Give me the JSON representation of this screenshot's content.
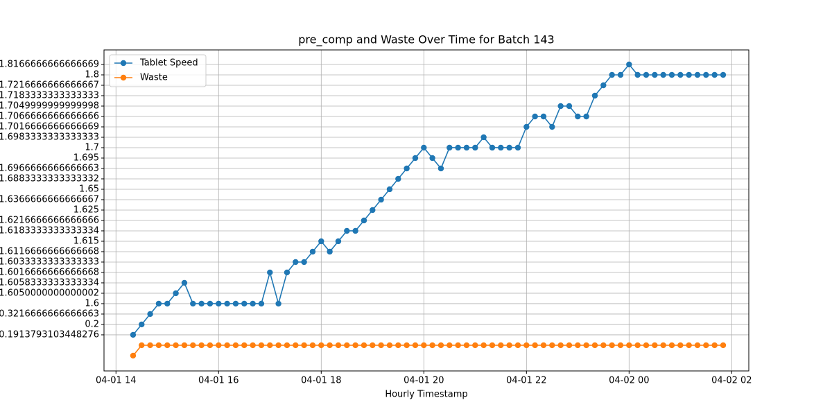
{
  "chart_data": {
    "type": "line",
    "title": "pre_comp and Waste Over Time for Batch 143",
    "xlabel": "Hourly Timestamp",
    "x": [
      "04-01 14:20",
      "04-01 14:30",
      "04-01 14:40",
      "04-01 14:50",
      "04-01 15:00",
      "04-01 15:10",
      "04-01 15:20",
      "04-01 15:30",
      "04-01 15:40",
      "04-01 15:50",
      "04-01 16:00",
      "04-01 16:10",
      "04-01 16:20",
      "04-01 16:30",
      "04-01 16:40",
      "04-01 16:50",
      "04-01 17:00",
      "04-01 17:10",
      "04-01 17:20",
      "04-01 17:30",
      "04-01 17:40",
      "04-01 17:50",
      "04-01 18:00",
      "04-01 18:10",
      "04-01 18:20",
      "04-01 18:30",
      "04-01 18:40",
      "04-01 18:50",
      "04-01 19:00",
      "04-01 19:10",
      "04-01 19:20",
      "04-01 19:30",
      "04-01 19:40",
      "04-01 19:50",
      "04-01 20:00",
      "04-01 20:10",
      "04-01 20:20",
      "04-01 20:30",
      "04-01 20:40",
      "04-01 20:50",
      "04-01 21:00",
      "04-01 21:10",
      "04-01 21:20",
      "04-01 21:30",
      "04-01 21:40",
      "04-01 21:50",
      "04-01 22:00",
      "04-01 22:10",
      "04-01 22:20",
      "04-01 22:30",
      "04-01 22:40",
      "04-01 22:50",
      "04-01 23:00",
      "04-01 23:10",
      "04-01 23:20",
      "04-01 23:30",
      "04-01 23:40",
      "04-01 23:50",
      "04-02 00:00",
      "04-02 00:10",
      "04-02 00:20",
      "04-02 00:30",
      "04-02 00:40",
      "04-02 00:50",
      "04-02 01:00",
      "04-02 01:10",
      "04-02 01:20",
      "04-02 01:30",
      "04-02 01:40",
      "04-02 01:50"
    ],
    "series": [
      {
        "name": "Tablet Speed",
        "color": "#1f77b4",
        "values": [
          0,
          1,
          2,
          3,
          3,
          4,
          5,
          3,
          3,
          3,
          3,
          3,
          3,
          3,
          3,
          3,
          6,
          3,
          6,
          7,
          7,
          8,
          9,
          8,
          9,
          10,
          10,
          11,
          12,
          13,
          14,
          15,
          16,
          17,
          18,
          17,
          16,
          18,
          18,
          18,
          18,
          19,
          18,
          18,
          18,
          18,
          20,
          21,
          21,
          20,
          22,
          22,
          21,
          21,
          23,
          24,
          25,
          25,
          26,
          25,
          25,
          25,
          25,
          25,
          25,
          25,
          25,
          25,
          25,
          25
        ]
      },
      {
        "name": "Waste",
        "color": "#ff7f0e",
        "values": [
          -2,
          -1,
          -1,
          -1,
          -1,
          -1,
          -1,
          -1,
          -1,
          -1,
          -1,
          -1,
          -1,
          -1,
          -1,
          -1,
          -1,
          -1,
          -1,
          -1,
          -1,
          -1,
          -1,
          -1,
          -1,
          -1,
          -1,
          -1,
          -1,
          -1,
          -1,
          -1,
          -1,
          -1,
          -1,
          -1,
          -1,
          -1,
          -1,
          -1,
          -1,
          -1,
          -1,
          -1,
          -1,
          -1,
          -1,
          -1,
          -1,
          -1,
          -1,
          -1,
          -1,
          -1,
          -1,
          -1,
          -1,
          -1,
          -1,
          -1,
          -1,
          -1,
          -1,
          -1,
          -1,
          -1,
          -1,
          -1,
          -1,
          -1
        ]
      }
    ],
    "xlim": [
      "04-01 13:46",
      "04-02 02:20"
    ],
    "xticks": [
      "04-01 14",
      "04-01 16",
      "04-01 18",
      "04-01 20",
      "04-01 22",
      "04-02 00",
      "04-02 02"
    ],
    "ylim": [
      -3.47,
      27.4
    ],
    "yticks": [
      {
        "value": 0,
        "label": "0.1913793103448276"
      },
      {
        "value": 1,
        "label": "0.2"
      },
      {
        "value": 2,
        "label": "0.3216666666666663"
      },
      {
        "value": 3,
        "label": "1.6"
      },
      {
        "value": 4,
        "label": "1.6050000000000002"
      },
      {
        "value": 5,
        "label": "1.6058333333333334"
      },
      {
        "value": 6,
        "label": "1.6016666666666668"
      },
      {
        "value": 7,
        "label": "1.6033333333333333"
      },
      {
        "value": 8,
        "label": "1.6116666666666668"
      },
      {
        "value": 9,
        "label": "1.615"
      },
      {
        "value": 10,
        "label": "1.6183333333333334"
      },
      {
        "value": 11,
        "label": "1.6216666666666666"
      },
      {
        "value": 12,
        "label": "1.625"
      },
      {
        "value": 13,
        "label": "1.6366666666666667"
      },
      {
        "value": 14,
        "label": "1.65"
      },
      {
        "value": 15,
        "label": "1.6883333333333332"
      },
      {
        "value": 16,
        "label": "1.6966666666666663"
      },
      {
        "value": 17,
        "label": "1.695"
      },
      {
        "value": 18,
        "label": "1.7"
      },
      {
        "value": 19,
        "label": "1.6983333333333333"
      },
      {
        "value": 20,
        "label": "1.7016666666666669"
      },
      {
        "value": 21,
        "label": "1.7066666666666666"
      },
      {
        "value": 22,
        "label": "1.7049999999999998"
      },
      {
        "value": 23,
        "label": "1.7183333333333333"
      },
      {
        "value": 24,
        "label": "1.7216666666666667"
      },
      {
        "value": 25,
        "label": "1.8"
      },
      {
        "value": 26,
        "label": "1.8166666666666669"
      }
    ],
    "grid": true,
    "legend": "upper left"
  }
}
